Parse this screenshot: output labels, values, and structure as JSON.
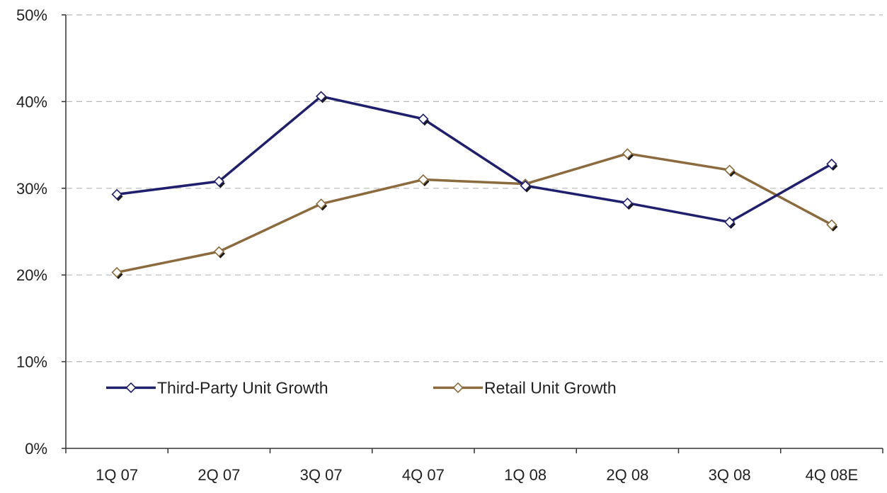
{
  "chart_data": {
    "type": "line",
    "title": "",
    "xlabel": "",
    "ylabel": "",
    "categories": [
      "1Q 07",
      "2Q 07",
      "3Q 07",
      "4Q 07",
      "1Q 08",
      "2Q 08",
      "3Q 08",
      "4Q 08E"
    ],
    "ylim": [
      0,
      50
    ],
    "yticks": [
      0,
      10,
      20,
      30,
      40,
      50
    ],
    "ytick_labels": [
      "0%",
      "10%",
      "20%",
      "30%",
      "40%",
      "50%"
    ],
    "grid": true,
    "legend_position": "lower-left",
    "series": [
      {
        "name": "Third-Party Unit Growth",
        "color": "#1f1f6e",
        "marker": "diamond",
        "values": [
          29.3,
          30.8,
          40.6,
          38.0,
          30.3,
          28.3,
          26.1,
          32.8
        ]
      },
      {
        "name": "Retail Unit Growth",
        "color": "#8b6b3d",
        "marker": "diamond",
        "values": [
          20.3,
          22.7,
          28.2,
          31.0,
          30.5,
          34.0,
          32.1,
          25.8
        ]
      }
    ]
  }
}
